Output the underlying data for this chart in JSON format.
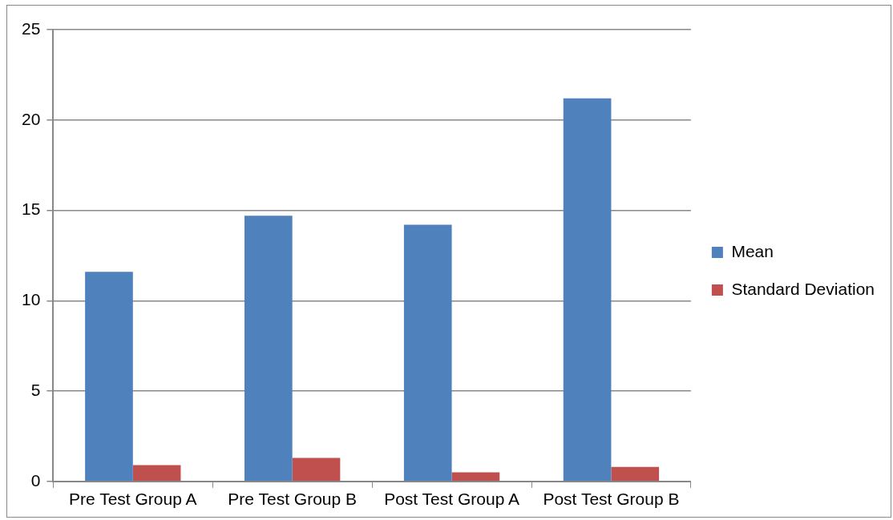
{
  "chart_data": {
    "type": "bar",
    "categories": [
      "Pre Test Group A",
      "Pre Test Group B",
      "Post Test Group A",
      "Post Test Group B"
    ],
    "series": [
      {
        "name": "Mean",
        "color": "#4f81bd",
        "values": [
          11.6,
          14.7,
          14.2,
          21.2
        ]
      },
      {
        "name": "Standard Deviation",
        "color": "#c0504d",
        "values": [
          0.9,
          1.3,
          0.5,
          0.8
        ]
      }
    ],
    "ylim": [
      0,
      25
    ],
    "yticks": [
      0,
      5,
      10,
      15,
      20,
      25
    ],
    "grid": "y",
    "legend": "right"
  }
}
